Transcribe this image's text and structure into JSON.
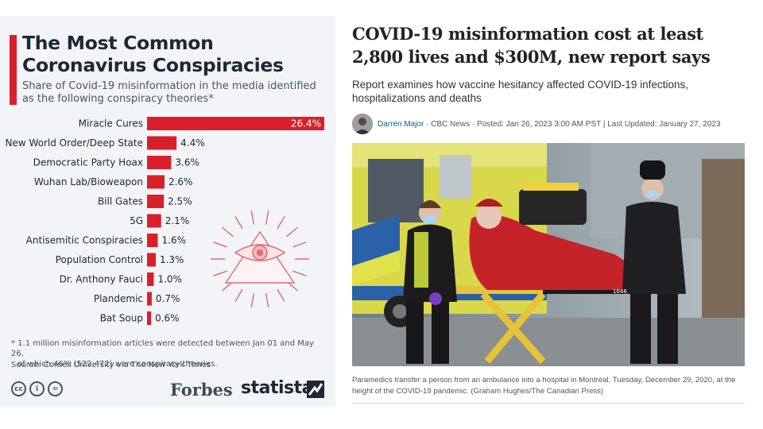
{
  "infographic": {
    "title": "The Most Common Coronavirus Conspiracies",
    "subtitle": "Share of Covid-19 misinformation in the media identified as the following conspiracy theories*",
    "footnote_line1": "* 1.1 million misinformation articles were detected between Jan 01 and May 26,",
    "footnote_line2": "of which 46% (522,472) were conspiracy theories.",
    "source": "Source: Cornell University via The New York Times",
    "cc_icons": [
      "cc",
      "i",
      "="
    ],
    "partner_logo": "Forbes",
    "brand_logo": "statista",
    "colors": {
      "bar": "#d9202a",
      "accent": "#d9202a",
      "title": "#1d2735"
    }
  },
  "chart_data": {
    "type": "bar",
    "orientation": "horizontal",
    "title": "The Most Common Coronavirus Conspiracies",
    "subtitle": "Share of Covid-19 misinformation in the media identified as the following conspiracy theories*",
    "categories": [
      "Miracle Cures",
      "New World Order/Deep State",
      "Democratic Party Hoax",
      "Wuhan Lab/Bioweapon",
      "Bill Gates",
      "5G",
      "Antisemitic Conspiracies",
      "Population Control",
      "Dr. Anthony Fauci",
      "Plandemic",
      "Bat Soup"
    ],
    "values": [
      26.4,
      4.4,
      3.6,
      2.6,
      2.5,
      2.1,
      1.6,
      1.3,
      1.0,
      0.7,
      0.6
    ],
    "value_labels": [
      "26.4%",
      "4.4%",
      "3.6%",
      "2.6%",
      "2.5%",
      "2.1%",
      "1.6%",
      "1.3%",
      "1.0%",
      "0.7%",
      "0.6%"
    ],
    "xlabel": "",
    "ylabel": "",
    "xlim": [
      0,
      26.4
    ],
    "grid": false,
    "legend": "none"
  },
  "article": {
    "headline": "COVID-19 misinformation cost at least 2,800 lives and $300M, new report says",
    "deck": "Report examines how vaccine hesitancy affected COVID-19 infections, hospitalizations and deaths",
    "author": "Darren Major",
    "byline_meta": " · CBC News · Posted: Jan 26, 2023 3:00 AM PST | Last Updated: January 27, 2023",
    "photo_caption": "Paramedics transfer a person from an ambulance into a hospital in Montreal, Tuesday, December 29, 2020, at the height of the COVID-19 pandemic. (Graham Hughes/The Canadian Press)",
    "photo_vehicle_number": "1646"
  }
}
